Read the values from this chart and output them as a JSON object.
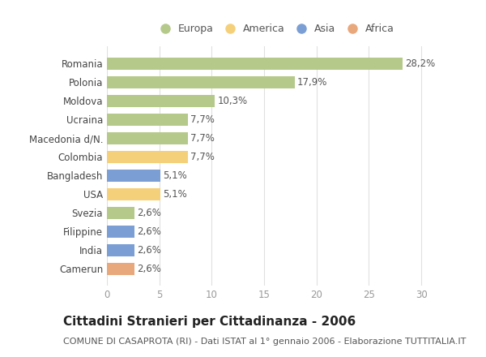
{
  "categories": [
    "Camerun",
    "India",
    "Filippine",
    "Svezia",
    "USA",
    "Bangladesh",
    "Colombia",
    "Macedonia d/N.",
    "Ucraina",
    "Moldova",
    "Polonia",
    "Romania"
  ],
  "values": [
    2.6,
    2.6,
    2.6,
    2.6,
    5.1,
    5.1,
    7.7,
    7.7,
    7.7,
    10.3,
    17.9,
    28.2
  ],
  "labels": [
    "2,6%",
    "2,6%",
    "2,6%",
    "2,6%",
    "5,1%",
    "5,1%",
    "7,7%",
    "7,7%",
    "7,7%",
    "10,3%",
    "17,9%",
    "28,2%"
  ],
  "colors": [
    "#e8a87c",
    "#7b9fd4",
    "#7b9fd4",
    "#b5c98a",
    "#f5d07a",
    "#7b9fd4",
    "#f5d07a",
    "#b5c98a",
    "#b5c98a",
    "#b5c98a",
    "#b5c98a",
    "#b5c98a"
  ],
  "color_europa": "#b5c98a",
  "color_america": "#f5d07a",
  "color_asia": "#7b9fd4",
  "color_africa": "#e8a87c",
  "legend_labels": [
    "Europa",
    "America",
    "Asia",
    "Africa"
  ],
  "title": "Cittadini Stranieri per Cittadinanza - 2006",
  "subtitle": "COMUNE DI CASAPROTA (RI) - Dati ISTAT al 1° gennaio 2006 - Elaborazione TUTTITALIA.IT",
  "xlim": [
    0,
    32
  ],
  "xticks": [
    0,
    5,
    10,
    15,
    20,
    25,
    30
  ],
  "background_color": "#ffffff",
  "grid_color": "#e0e0e0",
  "bar_height": 0.65,
  "title_fontsize": 11,
  "subtitle_fontsize": 8,
  "label_fontsize": 8.5,
  "tick_fontsize": 8.5,
  "legend_fontsize": 9
}
